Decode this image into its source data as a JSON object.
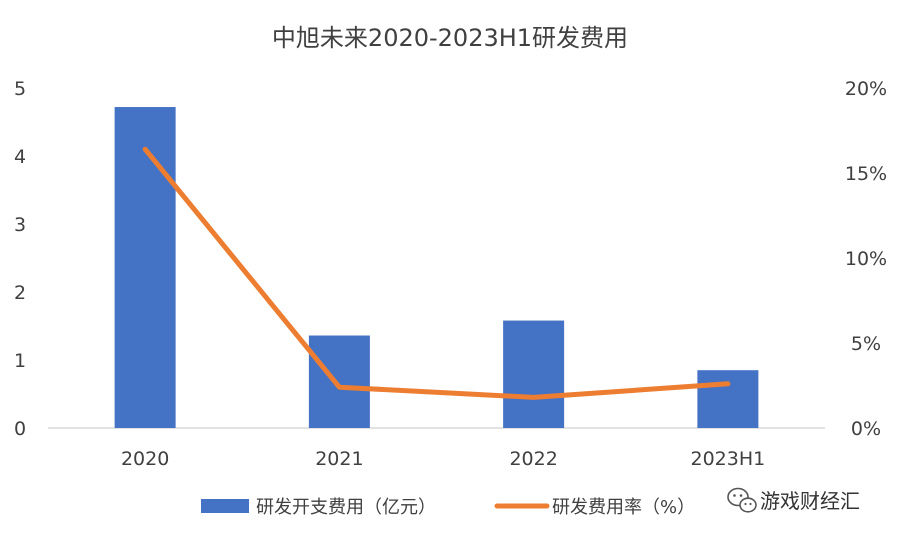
{
  "chart_data": {
    "type": "bar",
    "title": "中旭未来2020-2023H1研发费用",
    "categories": [
      "2020",
      "2021",
      "2022",
      "2023H1"
    ],
    "series": [
      {
        "name": "研发开支费用（亿元）",
        "type": "bar",
        "axis": "left",
        "values": [
          4.72,
          1.36,
          1.58,
          0.85
        ],
        "color": "#4472C4"
      },
      {
        "name": "研发费用率（%）",
        "type": "line",
        "axis": "right",
        "values": [
          16.4,
          2.4,
          1.8,
          2.6
        ],
        "color": "#ED7D31"
      }
    ],
    "y_left": {
      "min": 0,
      "max": 5,
      "ticks": [
        "0",
        "1",
        "2",
        "3",
        "4",
        "5"
      ]
    },
    "y_right": {
      "min": 0,
      "max": 20,
      "ticks": [
        "0%",
        "5%",
        "10%",
        "15%",
        "20%"
      ]
    },
    "grid": false,
    "legend_position": "bottom"
  },
  "watermark": {
    "text": "游戏财经汇",
    "icon": "wechat-icon"
  }
}
